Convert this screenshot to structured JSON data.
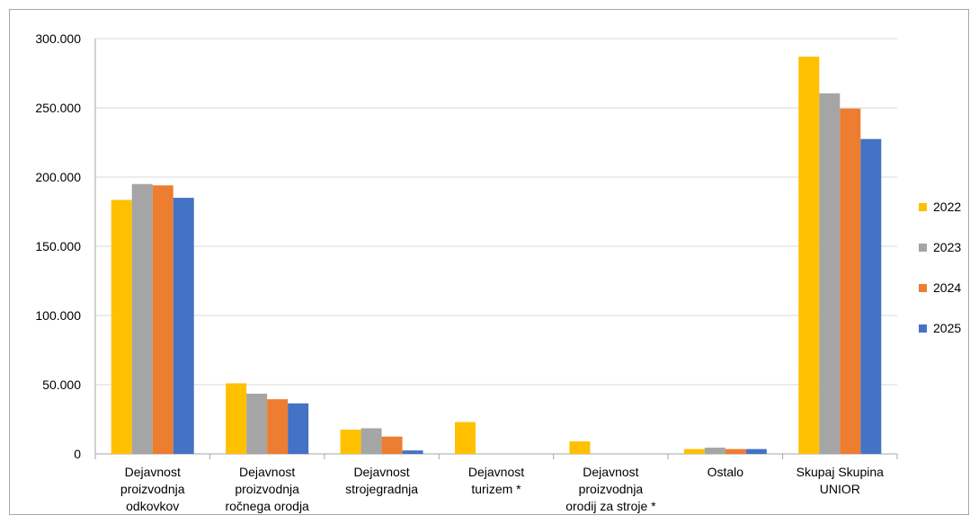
{
  "chart_data": {
    "type": "bar",
    "title": "",
    "xlabel": "",
    "ylabel": "",
    "ylim": [
      0,
      300000
    ],
    "yticks": [
      "0",
      "50.000",
      "100.000",
      "150.000",
      "200.000",
      "250.000",
      "300.000"
    ],
    "grid": true,
    "legend_position": "right",
    "categories": [
      [
        "Dejavnost",
        "proizvodnja",
        "odkovkov"
      ],
      [
        "Dejavnost",
        "proizvodnja",
        "ročnega orodja"
      ],
      [
        "Dejavnost",
        "strojegradnja"
      ],
      [
        "Dejavnost",
        "turizem *"
      ],
      [
        "Dejavnost",
        "proizvodnja",
        "orodij za stroje *"
      ],
      [
        "Ostalo"
      ],
      [
        "Skupaj Skupina",
        "UNIOR"
      ]
    ],
    "series": [
      {
        "name": "2022",
        "color": "#FFC000",
        "values": [
          183500,
          51000,
          17500,
          23000,
          9000,
          3500,
          287000
        ]
      },
      {
        "name": "2023",
        "color": "#A5A5A5",
        "values": [
          195000,
          43500,
          18500,
          null,
          null,
          4500,
          260500
        ]
      },
      {
        "name": "2024",
        "color": "#ED7D31",
        "values": [
          194000,
          39500,
          12500,
          null,
          null,
          3500,
          249500
        ]
      },
      {
        "name": "2025",
        "color": "#4472C4",
        "values": [
          185000,
          36500,
          2500,
          null,
          null,
          3500,
          227500
        ]
      }
    ]
  }
}
